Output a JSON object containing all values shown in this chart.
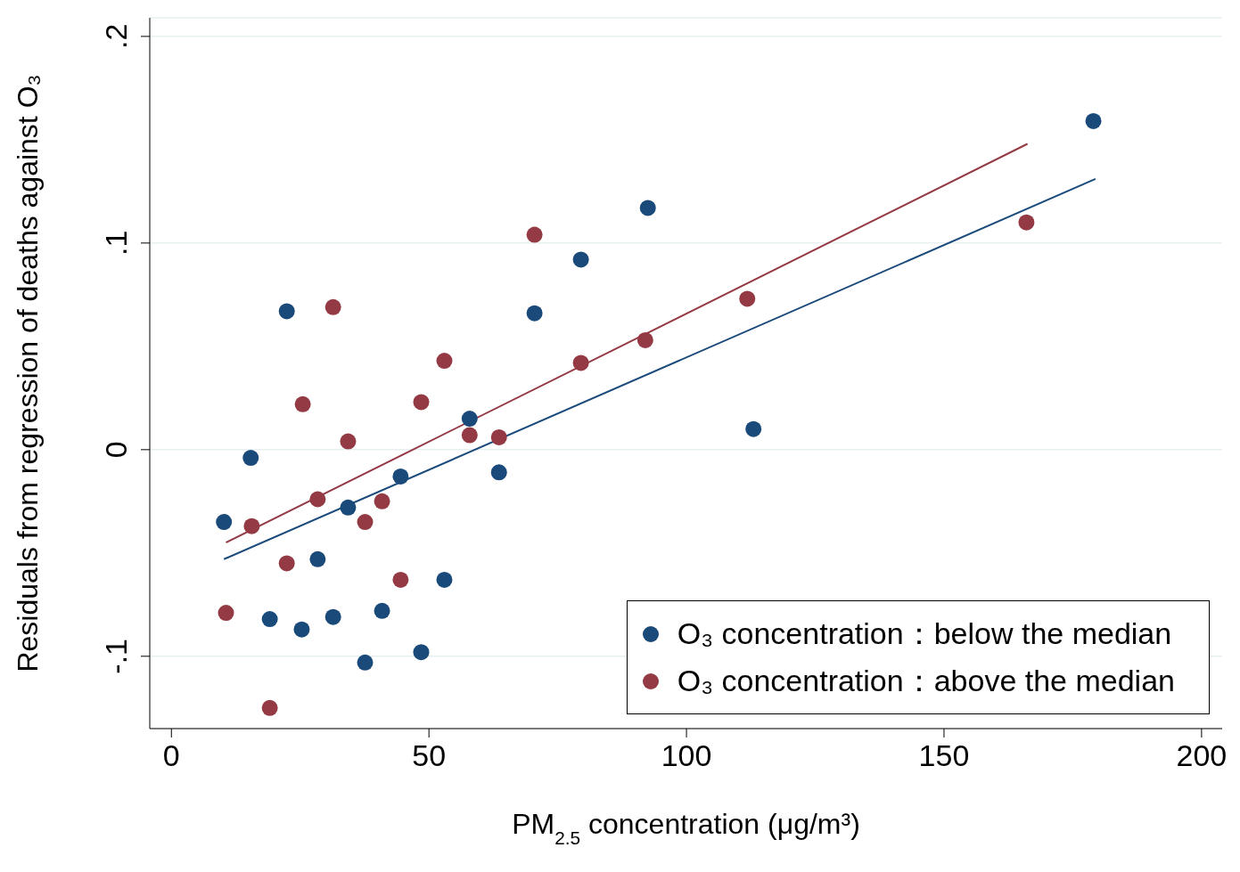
{
  "chart_data": {
    "type": "scatter",
    "xlabel": "PM$_{2.5}$ concentration (μg/m³)",
    "ylabel": "Residuals from regression of deaths against O₃",
    "xlim": [
      -4.2,
      204
    ],
    "xticks": [
      0,
      50,
      100,
      150,
      200
    ],
    "ylim": [
      -0.135,
      0.209
    ],
    "yticks": [
      {
        "value": -0.1,
        "label": "-.1"
      },
      {
        "value": 0,
        "label": "0"
      },
      {
        "value": 0.1,
        "label": ".1"
      },
      {
        "value": 0.2,
        "label": ".2"
      }
    ],
    "grid": "y",
    "legend": "bottom right",
    "marker": "circle",
    "series": [
      {
        "name": "O₃ concentration：below the median",
        "color": "#1a4a7a",
        "x": [
          10.2,
          15.4,
          22.4,
          19.1,
          25.3,
          28.4,
          31.4,
          34.3,
          37.6,
          40.9,
          44.5,
          48.5,
          53.0,
          57.9,
          63.6,
          70.5,
          79.5,
          92.5,
          113.0,
          179.0
        ],
        "values": [
          -0.035,
          -0.004,
          0.067,
          -0.082,
          -0.087,
          -0.053,
          -0.081,
          -0.028,
          -0.103,
          -0.078,
          -0.013,
          -0.098,
          -0.063,
          0.015,
          -0.011,
          0.066,
          0.092,
          0.117,
          0.01,
          0.159
        ]
      },
      {
        "name": "O₃ concentration：above the median",
        "color": "#943a44",
        "x": [
          10.6,
          15.6,
          19.1,
          22.4,
          25.5,
          28.4,
          31.4,
          34.3,
          37.6,
          40.9,
          44.5,
          48.5,
          53.0,
          57.9,
          63.6,
          70.5,
          79.5,
          92.0,
          111.8,
          166.0
        ],
        "values": [
          -0.079,
          -0.037,
          -0.125,
          -0.055,
          0.022,
          -0.024,
          0.069,
          0.004,
          -0.035,
          -0.025,
          -0.063,
          0.023,
          0.043,
          0.007,
          0.006,
          0.104,
          0.042,
          0.053,
          0.073,
          0.11
        ]
      },
      {
        "type": "line",
        "color": "#1a4a7a",
        "marker": "none",
        "x": [
          10.2,
          179.4
        ],
        "values": [
          -0.053,
          0.131
        ]
      },
      {
        "type": "line",
        "color": "#943a44",
        "marker": "none",
        "x": [
          10.6,
          166.2
        ],
        "values": [
          -0.045,
          0.148
        ]
      }
    ]
  }
}
